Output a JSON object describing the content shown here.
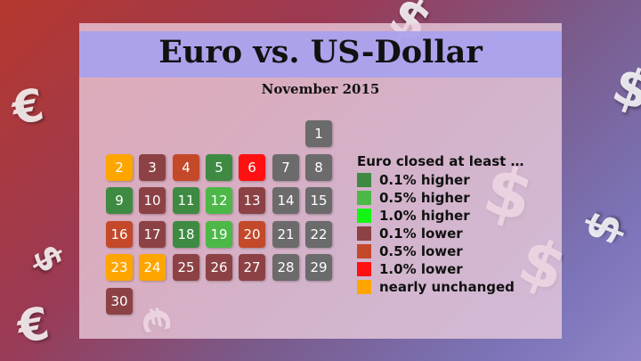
{
  "title": "Euro vs. US-Dollar",
  "subtitle": "November 2015",
  "legend_title": "Euro closed at least …",
  "categories": {
    "h01": {
      "label": "0.1% higher",
      "color": "#3f8a43",
      "text": "#ffffff"
    },
    "h05": {
      "label": "0.5% higher",
      "color": "#4cb848",
      "text": "#ffffff"
    },
    "h10": {
      "label": "1.0% higher",
      "color": "#14f514",
      "text": "#ffffff"
    },
    "l01": {
      "label": "0.1% lower",
      "color": "#8c4245",
      "text": "#ffffff"
    },
    "l05": {
      "label": "0.5% lower",
      "color": "#c4492a",
      "text": "#ffffff"
    },
    "l10": {
      "label": "1.0% lower",
      "color": "#ff1111",
      "text": "#ffffff"
    },
    "nc": {
      "label": "nearly unchanged",
      "color": "#ffa500",
      "text": "#ffffff"
    },
    "wk": {
      "label": "",
      "color": "#6b6b6b",
      "text": "#ffffff"
    }
  },
  "legend_order": [
    "h01",
    "h05",
    "h10",
    "l01",
    "l05",
    "l10",
    "nc"
  ],
  "weekday_start": 6,
  "days": [
    {
      "day": "1",
      "cat": "wk"
    },
    {
      "day": "2",
      "cat": "nc"
    },
    {
      "day": "3",
      "cat": "l01"
    },
    {
      "day": "4",
      "cat": "l05"
    },
    {
      "day": "5",
      "cat": "h01"
    },
    {
      "day": "6",
      "cat": "l10"
    },
    {
      "day": "7",
      "cat": "wk"
    },
    {
      "day": "8",
      "cat": "wk"
    },
    {
      "day": "9",
      "cat": "h01"
    },
    {
      "day": "10",
      "cat": "l01"
    },
    {
      "day": "11",
      "cat": "h01"
    },
    {
      "day": "12",
      "cat": "h05"
    },
    {
      "day": "13",
      "cat": "l01"
    },
    {
      "day": "14",
      "cat": "wk"
    },
    {
      "day": "15",
      "cat": "wk"
    },
    {
      "day": "16",
      "cat": "l05"
    },
    {
      "day": "17",
      "cat": "l01"
    },
    {
      "day": "18",
      "cat": "h01"
    },
    {
      "day": "19",
      "cat": "h05"
    },
    {
      "day": "20",
      "cat": "l05"
    },
    {
      "day": "21",
      "cat": "wk"
    },
    {
      "day": "22",
      "cat": "wk"
    },
    {
      "day": "23",
      "cat": "nc"
    },
    {
      "day": "24",
      "cat": "nc"
    },
    {
      "day": "25",
      "cat": "l01"
    },
    {
      "day": "26",
      "cat": "l01"
    },
    {
      "day": "27",
      "cat": "l01"
    },
    {
      "day": "28",
      "cat": "wk"
    },
    {
      "day": "29",
      "cat": "wk"
    },
    {
      "day": "30",
      "cat": "l01"
    }
  ],
  "background_symbols": [
    {
      "glyph": "$",
      "icon": "dollar-icon"
    },
    {
      "glyph": "$",
      "icon": "dollar-icon"
    },
    {
      "glyph": "€",
      "icon": "euro-icon"
    },
    {
      "glyph": "$",
      "icon": "dollar-icon"
    },
    {
      "glyph": "$",
      "icon": "dollar-icon"
    },
    {
      "glyph": "$",
      "icon": "dollar-icon"
    },
    {
      "glyph": "€",
      "icon": "euro-icon"
    },
    {
      "glyph": "€",
      "icon": "euro-icon"
    },
    {
      "glyph": "$",
      "icon": "dollar-icon"
    }
  ]
}
